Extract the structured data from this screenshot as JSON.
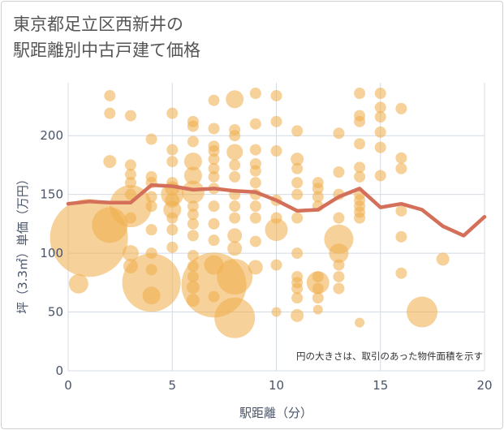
{
  "title_lines": [
    "東京都足立区西新井の",
    "駅距離別中古戸建て価格"
  ],
  "chart_data": {
    "type": "scatter",
    "title": "東京都足立区西新井の駅距離別中古戸建て価格",
    "xlabel": "駅距離（分）",
    "ylabel": "坪（3.3㎡）単価（万円）",
    "xlim": [
      0,
      20
    ],
    "ylim": [
      0,
      245
    ],
    "xticks": [
      0,
      5,
      10,
      15,
      20
    ],
    "yticks": [
      0,
      50,
      100,
      150,
      200
    ],
    "grid": true,
    "annotation": "円の大きさは、取引のあった物件面積を示す",
    "colors": {
      "bubble": "#f0b050",
      "line": "#d4705a",
      "grid": "#d4dbe3"
    },
    "series": [
      {
        "type": "bubble",
        "points": [
          [
            0.5,
            74,
            12
          ],
          [
            1,
            113,
            48
          ],
          [
            2,
            124,
            22
          ],
          [
            2,
            178,
            8
          ],
          [
            2,
            219,
            7
          ],
          [
            2,
            234,
            7
          ],
          [
            3,
            140,
            26
          ],
          [
            3,
            89,
            9
          ],
          [
            3,
            100,
            10
          ],
          [
            3,
            130,
            7
          ],
          [
            3,
            150,
            7
          ],
          [
            3,
            160,
            7
          ],
          [
            3,
            167,
            7
          ],
          [
            3,
            175,
            7
          ],
          [
            3,
            217,
            7
          ],
          [
            4,
            75,
            36
          ],
          [
            4,
            64,
            11
          ],
          [
            4,
            86,
            7
          ],
          [
            4,
            100,
            7
          ],
          [
            4,
            120,
            7
          ],
          [
            4,
            140,
            7
          ],
          [
            4,
            148,
            7
          ],
          [
            4,
            160,
            7
          ],
          [
            4,
            165,
            7
          ],
          [
            4,
            197,
            7
          ],
          [
            5,
            105,
            7
          ],
          [
            5,
            120,
            7
          ],
          [
            5,
            130,
            7
          ],
          [
            5,
            137,
            11
          ],
          [
            5,
            145,
            9
          ],
          [
            5,
            150,
            14
          ],
          [
            5,
            155,
            9
          ],
          [
            5,
            160,
            7
          ],
          [
            5,
            178,
            7
          ],
          [
            5,
            188,
            7
          ],
          [
            5,
            219,
            7
          ],
          [
            6,
            60,
            8
          ],
          [
            6,
            71,
            8
          ],
          [
            6,
            80,
            7
          ],
          [
            6,
            89,
            7
          ],
          [
            6,
            98,
            7
          ],
          [
            6,
            115,
            7
          ],
          [
            6,
            125,
            7
          ],
          [
            6,
            133,
            7
          ],
          [
            6,
            140,
            7
          ],
          [
            6,
            152,
            14
          ],
          [
            6,
            166,
            11
          ],
          [
            6,
            178,
            11
          ],
          [
            6,
            195,
            7
          ],
          [
            6,
            208,
            7
          ],
          [
            6,
            212,
            7
          ],
          [
            7,
            73,
            40
          ],
          [
            7,
            90,
            12
          ],
          [
            7,
            63,
            7
          ],
          [
            7,
            111,
            7
          ],
          [
            7,
            125,
            7
          ],
          [
            7,
            140,
            7
          ],
          [
            7,
            155,
            7
          ],
          [
            7,
            165,
            7
          ],
          [
            7,
            172,
            7
          ],
          [
            7,
            180,
            7
          ],
          [
            7,
            187,
            7
          ],
          [
            7,
            191,
            7
          ],
          [
            7,
            206,
            7
          ],
          [
            7,
            230,
            7
          ],
          [
            8,
            45,
            25
          ],
          [
            8,
            80,
            22
          ],
          [
            8,
            104,
            9
          ],
          [
            8,
            115,
            9
          ],
          [
            8,
            130,
            7
          ],
          [
            8,
            140,
            7
          ],
          [
            8,
            150,
            7
          ],
          [
            8,
            165,
            7
          ],
          [
            8,
            175,
            7
          ],
          [
            8,
            186,
            10
          ],
          [
            8,
            200,
            7
          ],
          [
            8,
            205,
            7
          ],
          [
            8,
            231,
            11
          ],
          [
            9,
            88,
            9
          ],
          [
            9,
            110,
            7
          ],
          [
            9,
            130,
            7
          ],
          [
            9,
            140,
            7
          ],
          [
            9,
            150,
            7
          ],
          [
            9,
            160,
            7
          ],
          [
            9,
            170,
            7
          ],
          [
            9,
            176,
            7
          ],
          [
            9,
            188,
            7
          ],
          [
            9,
            210,
            7
          ],
          [
            9,
            236,
            7
          ],
          [
            10,
            50,
            6
          ],
          [
            10,
            90,
            7
          ],
          [
            10,
            120,
            14
          ],
          [
            10,
            130,
            7
          ],
          [
            10,
            145,
            7
          ],
          [
            10,
            187,
            7
          ],
          [
            10,
            212,
            7
          ],
          [
            10,
            234,
            7
          ],
          [
            11,
            47,
            8
          ],
          [
            11,
            62,
            7
          ],
          [
            11,
            70,
            7
          ],
          [
            11,
            75,
            7
          ],
          [
            11,
            80,
            7
          ],
          [
            11,
            100,
            7
          ],
          [
            11,
            130,
            7
          ],
          [
            11,
            150,
            7
          ],
          [
            11,
            160,
            7
          ],
          [
            11,
            172,
            7
          ],
          [
            11,
            180,
            8
          ],
          [
            11,
            204,
            7
          ],
          [
            12,
            52,
            6
          ],
          [
            12,
            62,
            7
          ],
          [
            12,
            70,
            7
          ],
          [
            12,
            75,
            14
          ],
          [
            12,
            80,
            7
          ],
          [
            12,
            140,
            7
          ],
          [
            12,
            148,
            7
          ],
          [
            12,
            155,
            7
          ],
          [
            12,
            160,
            7
          ],
          [
            13,
            112,
            18
          ],
          [
            13,
            100,
            12
          ],
          [
            13,
            70,
            7
          ],
          [
            13,
            80,
            7
          ],
          [
            13,
            90,
            7
          ],
          [
            13,
            130,
            7
          ],
          [
            13,
            150,
            7
          ],
          [
            13,
            169,
            7
          ],
          [
            13,
            202,
            7
          ],
          [
            14,
            41,
            6
          ],
          [
            14,
            130,
            7
          ],
          [
            14,
            135,
            7
          ],
          [
            14,
            140,
            7
          ],
          [
            14,
            145,
            7
          ],
          [
            14,
            150,
            7
          ],
          [
            14,
            165,
            7
          ],
          [
            14,
            173,
            7
          ],
          [
            14,
            193,
            7
          ],
          [
            14,
            212,
            7
          ],
          [
            14,
            217,
            7
          ],
          [
            14,
            236,
            7
          ],
          [
            15,
            166,
            7
          ],
          [
            15,
            190,
            7
          ],
          [
            15,
            203,
            7
          ],
          [
            15,
            216,
            7
          ],
          [
            15,
            224,
            7
          ],
          [
            15,
            236,
            7
          ],
          [
            16,
            83,
            7
          ],
          [
            16,
            114,
            7
          ],
          [
            16,
            136,
            7
          ],
          [
            16,
            172,
            7
          ],
          [
            16,
            181,
            7
          ],
          [
            16,
            223,
            7
          ],
          [
            17,
            50,
            19
          ],
          [
            18,
            95,
            8
          ]
        ]
      },
      {
        "type": "line",
        "x": [
          0,
          1,
          2,
          3,
          4,
          5,
          6,
          7,
          8,
          9,
          10,
          11,
          12,
          13,
          14,
          15,
          16,
          17,
          18,
          19,
          20
        ],
        "y": [
          142,
          144,
          143,
          143,
          158,
          157,
          154,
          155,
          153,
          152,
          145,
          136,
          137,
          148,
          155,
          139,
          142,
          137,
          123,
          115,
          131
        ]
      }
    ]
  }
}
